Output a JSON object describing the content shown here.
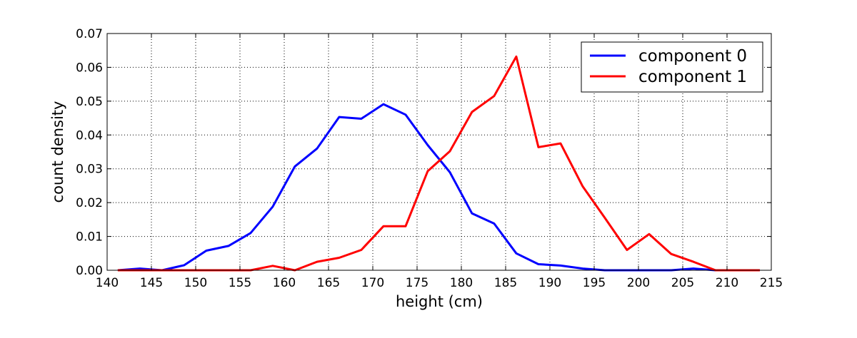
{
  "chart_data": {
    "type": "line",
    "xlabel": "height (cm)",
    "ylabel": "count density",
    "xlim": [
      140,
      215
    ],
    "ylim": [
      0,
      0.07
    ],
    "xticks": [
      "140",
      "145",
      "150",
      "155",
      "160",
      "165",
      "170",
      "175",
      "180",
      "185",
      "190",
      "195",
      "200",
      "205",
      "210",
      "215"
    ],
    "yticks": [
      "0.00",
      "0.01",
      "0.02",
      "0.03",
      "0.04",
      "0.05",
      "0.06",
      "0.07"
    ],
    "grid": true,
    "legend_position": "top-right",
    "series": [
      {
        "name": "component 0",
        "color": "#0000ff",
        "x": [
          141.2,
          143.7,
          146.2,
          148.7,
          151.2,
          153.7,
          156.2,
          158.7,
          161.2,
          163.7,
          166.2,
          168.7,
          171.2,
          173.7,
          176.2,
          178.7,
          181.2,
          183.7,
          186.2,
          188.7,
          191.2,
          193.7,
          196.2,
          198.7,
          201.2,
          203.7,
          206.2,
          208.7,
          211.2,
          213.7
        ],
        "y": [
          0.0,
          0.0005,
          0.0,
          0.0015,
          0.0058,
          0.0072,
          0.011,
          0.0188,
          0.0307,
          0.036,
          0.0453,
          0.0448,
          0.0491,
          0.046,
          0.037,
          0.029,
          0.0168,
          0.0138,
          0.005,
          0.0018,
          0.0014,
          0.0005,
          0.0,
          0.0,
          0.0,
          0.0,
          0.0005,
          0.0,
          0.0,
          0.0
        ]
      },
      {
        "name": "component 1",
        "color": "#ff0000",
        "x": [
          141.2,
          143.7,
          146.2,
          148.7,
          151.2,
          153.7,
          156.2,
          158.7,
          161.2,
          163.7,
          166.2,
          168.7,
          171.2,
          173.7,
          176.2,
          178.7,
          181.2,
          183.7,
          186.2,
          188.7,
          191.2,
          193.7,
          196.2,
          198.7,
          201.2,
          203.7,
          206.2,
          208.7,
          211.2,
          213.7
        ],
        "y": [
          0.0,
          0.0,
          0.0,
          0.0,
          0.0,
          0.0,
          0.0,
          0.0013,
          0.0,
          0.0025,
          0.0037,
          0.006,
          0.013,
          0.013,
          0.0293,
          0.0352,
          0.0468,
          0.0515,
          0.0632,
          0.0364,
          0.0375,
          0.0248,
          0.0155,
          0.006,
          0.0107,
          0.0048,
          0.0025,
          0.0,
          0.0,
          0.0
        ]
      }
    ]
  }
}
